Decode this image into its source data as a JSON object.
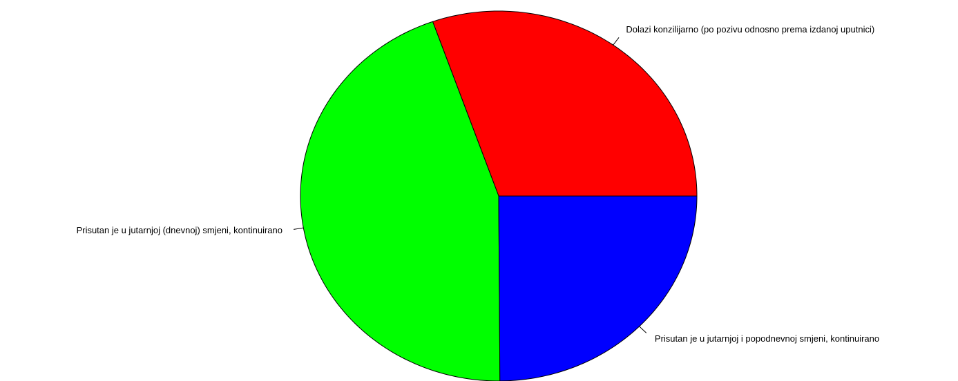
{
  "chart_data": {
    "type": "pie",
    "title": "",
    "slices": [
      {
        "label": "Dolazi konzilijarno (po pozivu odnosno prema izdanoj uputnici)",
        "value": 30.4,
        "color": "#ff0000"
      },
      {
        "label": "Prisutan je u jutarnjoj (dnevnoj) smjeni, kontinuirano",
        "value": 44.7,
        "color": "#00ff00"
      },
      {
        "label": "Prisutan je u jutarnjoj i popodnevnoj smjeni, kontinuirano",
        "value": 24.9,
        "color": "#0000ff"
      }
    ],
    "start_angle_deg": 0,
    "direction": "counterclockwise",
    "legend": "none"
  }
}
